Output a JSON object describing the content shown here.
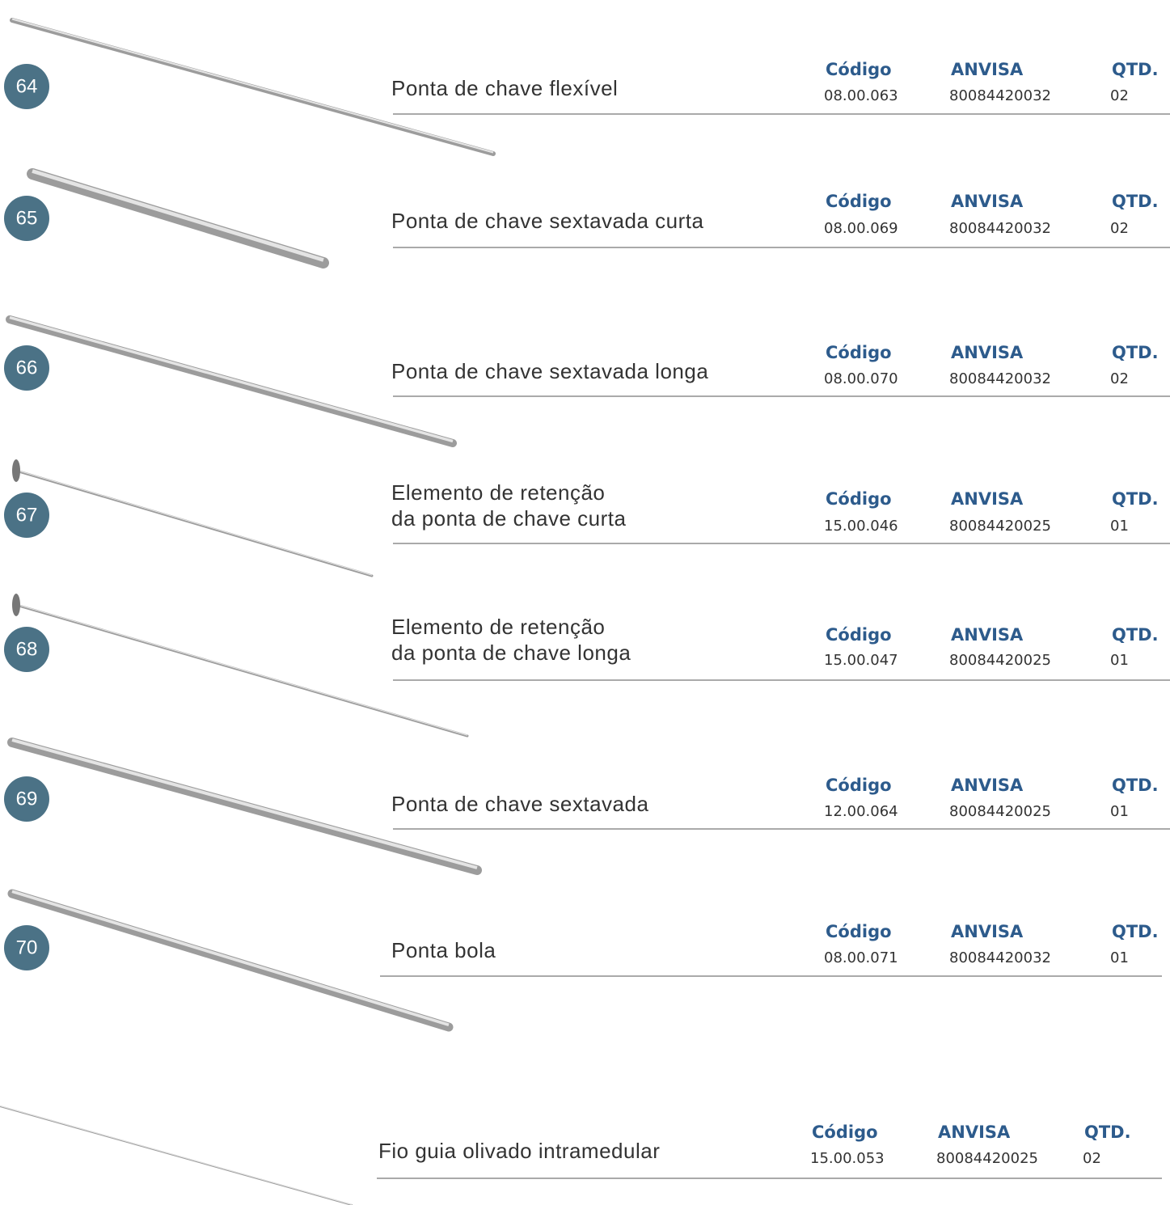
{
  "labels": {
    "code": "Código",
    "anvisa": "ANVISA",
    "qty": "QTD."
  },
  "items": [
    {
      "number": "64",
      "name": [
        "Ponta de chave flexível"
      ],
      "code": "08.00.063",
      "anvisa": "80084420032",
      "qty": "02"
    },
    {
      "number": "65",
      "name": [
        "Ponta de chave sextavada curta"
      ],
      "code": "08.00.069",
      "anvisa": "80084420032",
      "qty": "02"
    },
    {
      "number": "66",
      "name": [
        "Ponta de chave sextavada longa"
      ],
      "code": "08.00.070",
      "anvisa": "80084420032",
      "qty": "02"
    },
    {
      "number": "67",
      "name": [
        "Elemento de retenção",
        "da ponta de chave curta"
      ],
      "code": "15.00.046",
      "anvisa": "80084420025",
      "qty": "01"
    },
    {
      "number": "68",
      "name": [
        "Elemento de retenção",
        "da ponta de chave longa"
      ],
      "code": "15.00.047",
      "anvisa": "80084420025",
      "qty": "01"
    },
    {
      "number": "69",
      "name": [
        "Ponta de chave sextavada"
      ],
      "code": "12.00.064",
      "anvisa": "80084420025",
      "qty": "01"
    },
    {
      "number": "70",
      "name": [
        "Ponta bola"
      ],
      "code": "08.00.071",
      "anvisa": "80084420032",
      "qty": "01"
    },
    {
      "name": [
        "Fio guia olivado intramedular"
      ],
      "code": "15.00.053",
      "anvisa": "80084420025",
      "qty": "02"
    }
  ]
}
